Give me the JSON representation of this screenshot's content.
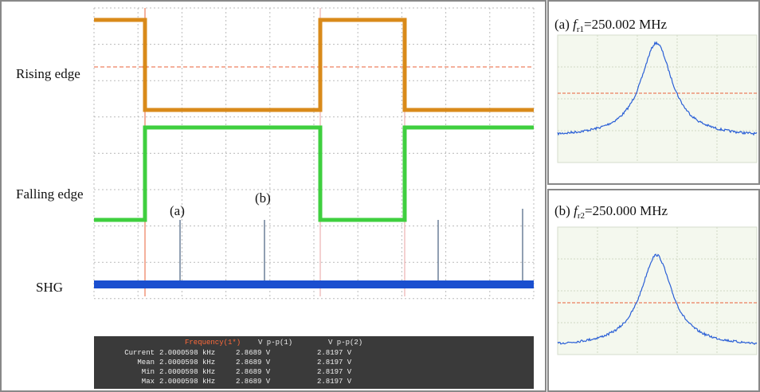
{
  "scope": {
    "traces": [
      "Rising edge",
      "Falling edge",
      "SHG"
    ],
    "markers": [
      "(a)",
      "(b)"
    ],
    "measurements": {
      "headers": [
        "Frequency(1*)",
        "V p-p(1)",
        "V p-p(2)"
      ],
      "rows": [
        [
          "Current",
          "2.0000598 kHz",
          "2.8689 V",
          "2.8197 V"
        ],
        [
          "Mean",
          "2.0000598 kHz",
          "2.8689 V",
          "2.8197 V"
        ],
        [
          "Min",
          "2.0000598 kHz",
          "2.8689 V",
          "2.8197 V"
        ],
        [
          "Max",
          "2.0000598 kHz",
          "2.8689 V",
          "2.8197 V"
        ]
      ]
    }
  },
  "spectra": [
    {
      "prefix": "(a) ",
      "symbol": "f",
      "subscript": "r1",
      "value": "=250.002 MHz"
    },
    {
      "prefix": "(b) ",
      "symbol": "f",
      "subscript": "r2",
      "value": "=250.000 MHz"
    }
  ]
}
